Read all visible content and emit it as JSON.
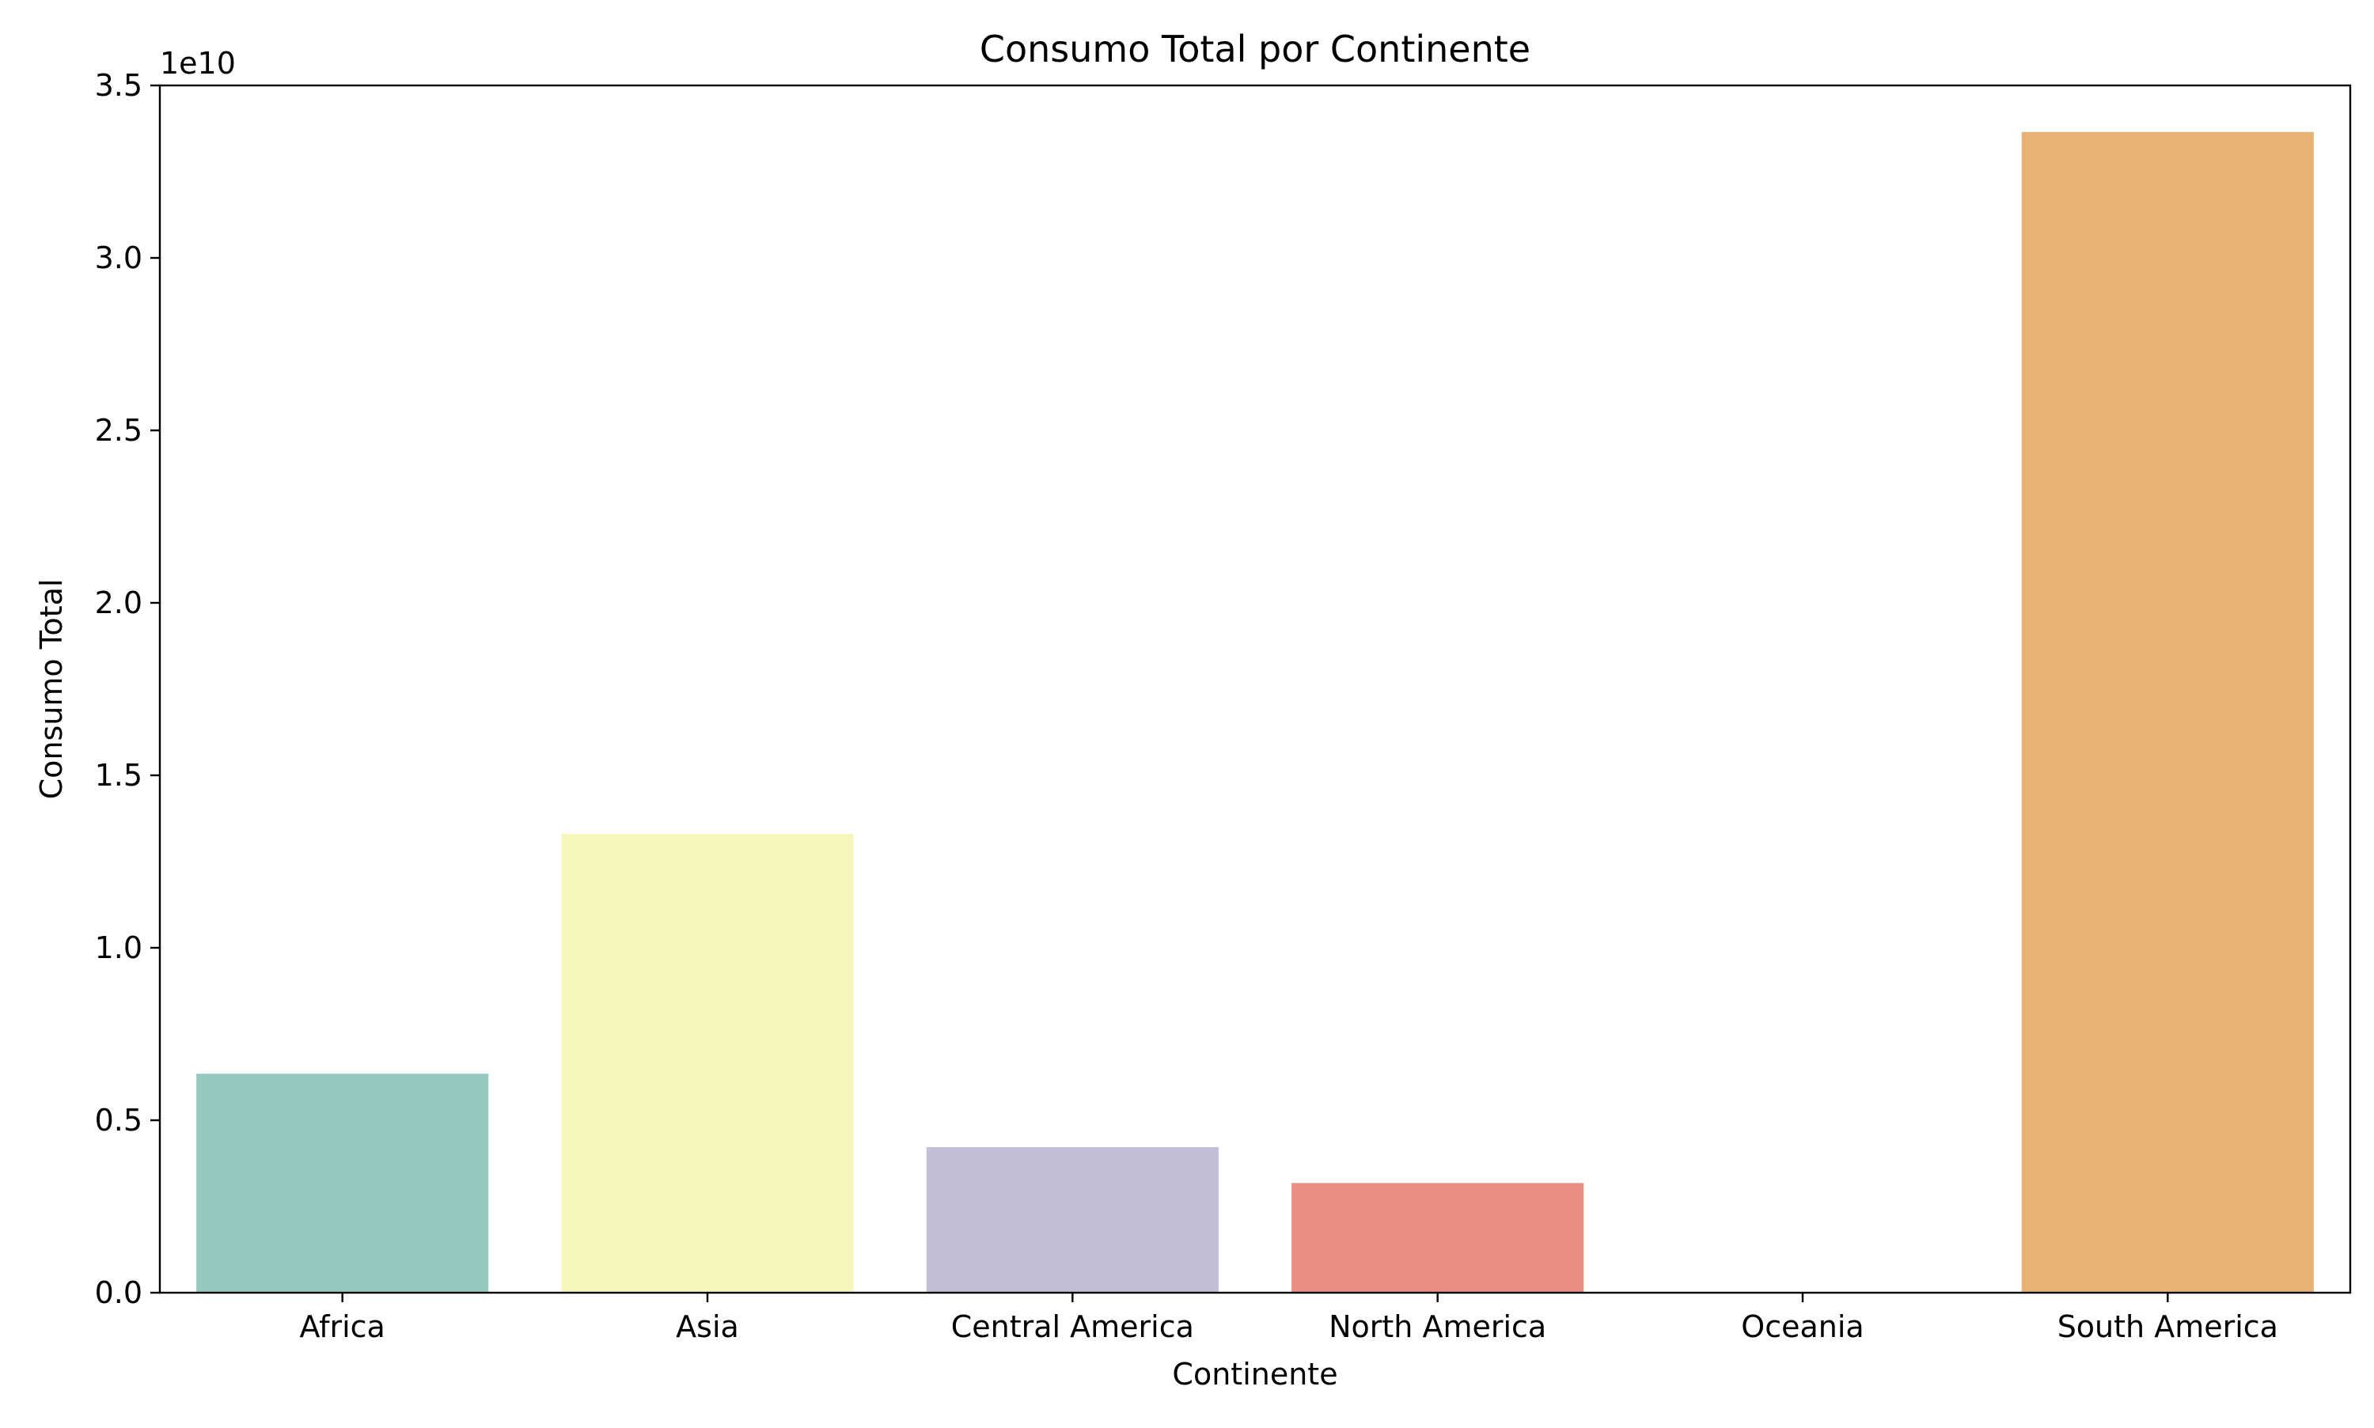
{
  "chart_data": {
    "type": "bar",
    "title": "Consumo Total por Continente",
    "xlabel": "Continente",
    "ylabel": "Consumo Total",
    "offset_label": "1e10",
    "categories": [
      "Africa",
      "Asia",
      "Central America",
      "North America",
      "Oceania",
      "South America"
    ],
    "values": [
      6350000000,
      13300000000,
      4220000000,
      3180000000,
      0,
      33650000000
    ],
    "colors": [
      "#95c8c0",
      "#f6f6bd",
      "#c1bed6",
      "#ea8e82",
      "#b3cde3",
      "#e9b275"
    ],
    "ylim": [
      0,
      35000000000
    ],
    "yticks": [
      0,
      5000000000,
      10000000000,
      15000000000,
      20000000000,
      25000000000,
      30000000000,
      35000000000
    ],
    "ytick_labels": [
      "0.0",
      "0.5",
      "1.0",
      "1.5",
      "2.0",
      "2.5",
      "3.0",
      "3.5"
    ],
    "grid": false,
    "legend": "none"
  }
}
